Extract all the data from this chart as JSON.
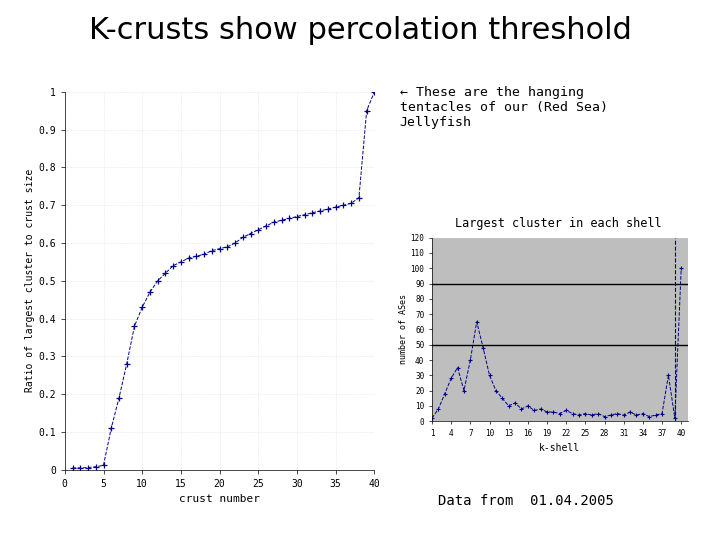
{
  "title": "K-crusts show percolation threshold",
  "title_fontsize": 22,
  "bg_color": "#ffffff",
  "left_plot": {
    "xlabel": "crust number",
    "ylabel": "Ratio of largest cluster to crust size",
    "xlim": [
      0,
      40
    ],
    "ylim": [
      0,
      1
    ],
    "xticks": [
      0,
      5,
      10,
      15,
      20,
      25,
      30,
      35,
      40
    ],
    "yticks": [
      0,
      0.1,
      0.2,
      0.3,
      0.4,
      0.5,
      0.6,
      0.7,
      0.8,
      0.9,
      1
    ],
    "ytick_labels": [
      "0",
      "0.1",
      "0.2",
      "0.3",
      "0.4",
      "0.5",
      "0.6",
      "0.7",
      "0.8",
      "0.9",
      "1"
    ],
    "color": "#00008B",
    "x": [
      1,
      2,
      3,
      4,
      5,
      6,
      7,
      8,
      9,
      10,
      11,
      12,
      13,
      14,
      15,
      16,
      17,
      18,
      19,
      20,
      21,
      22,
      23,
      24,
      25,
      26,
      27,
      28,
      29,
      30,
      31,
      32,
      33,
      34,
      35,
      36,
      37,
      38,
      39,
      40
    ],
    "y": [
      0.005,
      0.005,
      0.006,
      0.008,
      0.012,
      0.11,
      0.19,
      0.28,
      0.38,
      0.43,
      0.47,
      0.5,
      0.52,
      0.54,
      0.55,
      0.56,
      0.565,
      0.57,
      0.58,
      0.585,
      0.59,
      0.6,
      0.615,
      0.625,
      0.635,
      0.645,
      0.655,
      0.66,
      0.665,
      0.67,
      0.675,
      0.68,
      0.685,
      0.69,
      0.695,
      0.7,
      0.705,
      0.72,
      0.95,
      1.0
    ]
  },
  "right_plot": {
    "title": "Largest cluster in each shell",
    "xlabel": "k-shell",
    "ylabel": "number of ASes",
    "xlim": [
      1,
      41
    ],
    "ylim": [
      0,
      120
    ],
    "ytick_vals": [
      0,
      10,
      20,
      30,
      40,
      50,
      60,
      70,
      80,
      90,
      100,
      110,
      120
    ],
    "ytick_labels": [
      "0",
      "10",
      "20",
      "30",
      "40",
      "50",
      "60",
      "70",
      "80",
      "90",
      "100",
      "110",
      "120"
    ],
    "xtick_labels": [
      "1",
      "4",
      "7",
      "10",
      "13",
      "16",
      "19",
      "22",
      "25",
      "28",
      "31",
      "34",
      "37",
      "40"
    ],
    "xtick_pos": [
      1,
      4,
      7,
      10,
      13,
      16,
      19,
      22,
      25,
      28,
      31,
      34,
      37,
      40
    ],
    "color": "#00008B",
    "hline1": 50,
    "hline2": 90,
    "vline": 39,
    "x": [
      1,
      2,
      3,
      4,
      5,
      6,
      7,
      8,
      9,
      10,
      11,
      12,
      13,
      14,
      15,
      16,
      17,
      18,
      19,
      20,
      21,
      22,
      23,
      24,
      25,
      26,
      27,
      28,
      29,
      30,
      31,
      32,
      33,
      34,
      35,
      36,
      37,
      38,
      39,
      40
    ],
    "y": [
      2,
      8,
      18,
      28,
      35,
      20,
      40,
      65,
      48,
      30,
      20,
      15,
      10,
      12,
      8,
      10,
      7,
      8,
      6,
      6,
      5,
      7,
      5,
      4,
      5,
      4,
      5,
      3,
      4,
      5,
      4,
      6,
      4,
      5,
      3,
      4,
      5,
      30,
      2,
      100
    ]
  },
  "annotation_text": "← These are the hanging\ntentacles of our (Red Sea)\nJellyfish",
  "annotation_fontsize": 9.5,
  "footer_text": "Data from  01.04.2005",
  "footer_fontsize": 10
}
